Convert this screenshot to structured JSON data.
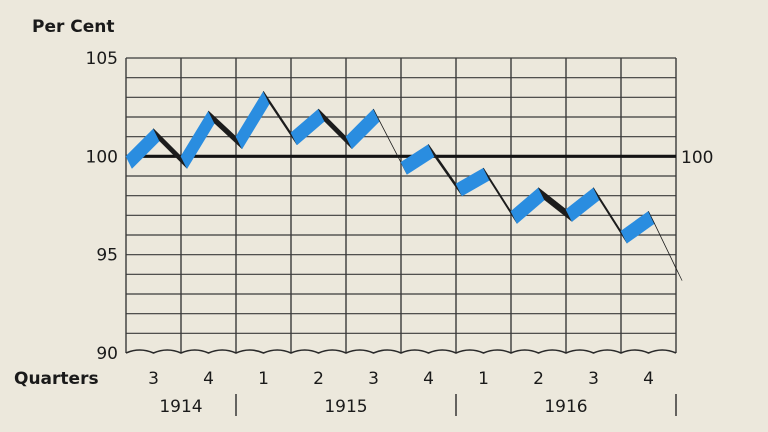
{
  "chart_data": {
    "type": "line",
    "ylabel": "Per Cent",
    "xlabel": "Quarters",
    "ylim": [
      90,
      105
    ],
    "y_ticks": [
      90,
      95,
      100,
      105
    ],
    "reference_line": {
      "value": 100,
      "label": "100"
    },
    "quarters": [
      "3",
      "4",
      "1",
      "2",
      "3",
      "4",
      "1",
      "2",
      "3",
      "4"
    ],
    "years": [
      {
        "label": "1914",
        "quarters": 2
      },
      {
        "label": "1915",
        "quarters": 4
      },
      {
        "label": "1916",
        "quarters": 4
      }
    ],
    "x_labels": [
      "1914 Q3",
      "1914 Q4",
      "1915 Q1",
      "1915 Q2",
      "1915 Q3",
      "1915 Q4",
      "1916 Q1",
      "1916 Q2",
      "1916 Q3",
      "1916 Q4"
    ],
    "series": [
      {
        "values": [
          100.0,
          101.4,
          100.0,
          102.3,
          101.0,
          103.3,
          101.2,
          102.4,
          101.0,
          102.4,
          99.7,
          100.6,
          98.6,
          99.4,
          97.2,
          98.4,
          97.3,
          98.4,
          96.2,
          97.2,
          94.3
        ],
        "color_rise": "#2a8de0",
        "color_fall": "#1c1c1c"
      }
    ],
    "grid": true
  }
}
